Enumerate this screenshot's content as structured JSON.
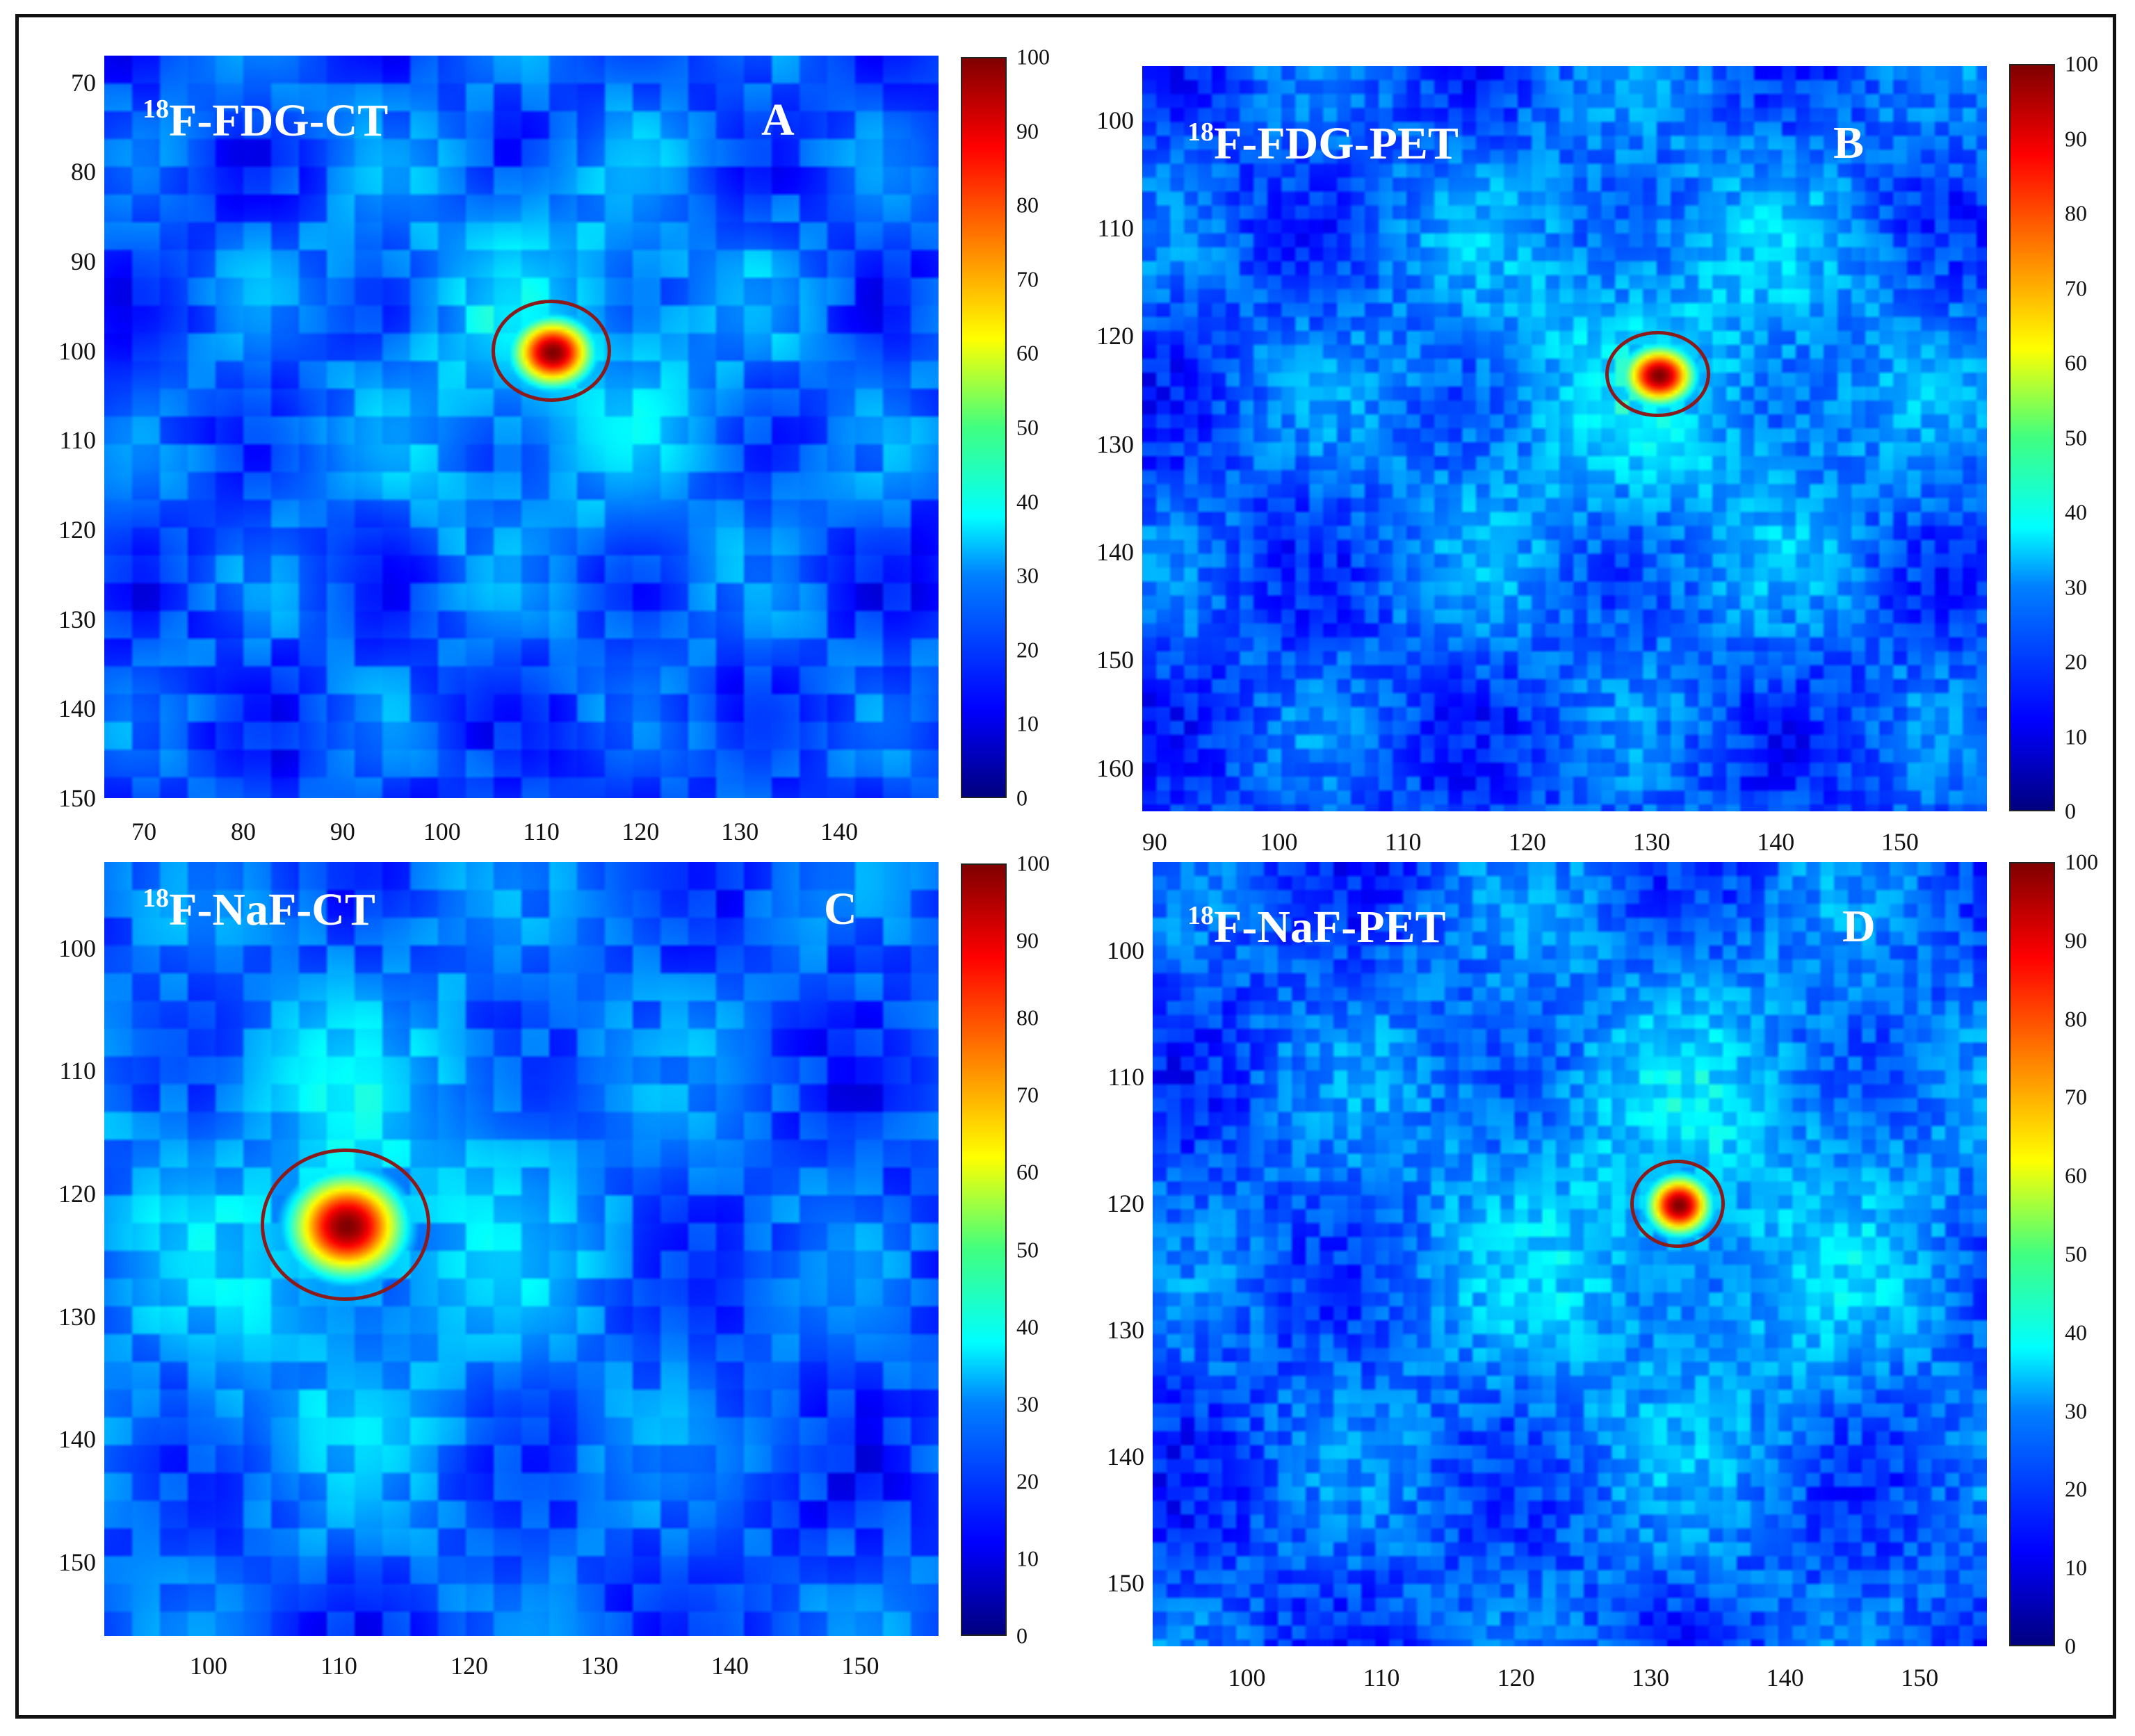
{
  "colors": {
    "roi_outline": "#8b1a1a",
    "label_text": "#ffffff",
    "colormap": "jet"
  },
  "chart_data": [
    {
      "type": "heatmap",
      "panel": "A",
      "title_sup": "18",
      "title_main": "F-FDG-CT",
      "letter": "A",
      "xlim": [
        66,
        150
      ],
      "ylim": [
        67,
        150
      ],
      "xticks": [
        70,
        80,
        90,
        100,
        110,
        120,
        130,
        140
      ],
      "yticks": [
        70,
        80,
        90,
        100,
        110,
        120,
        130,
        140,
        150
      ],
      "colorbar": {
        "min": 0,
        "max": 100,
        "ticks": [
          0,
          10,
          20,
          30,
          40,
          50,
          60,
          70,
          80,
          90,
          100
        ]
      },
      "hotspot": {
        "x": 111,
        "y": 100,
        "peak": 100
      },
      "roi": {
        "cx": 111,
        "cy": 100,
        "rx": 6,
        "ry": 5.7
      }
    },
    {
      "type": "heatmap",
      "panel": "B",
      "title_sup": "18",
      "title_main": "F-FDG-PET",
      "letter": "B",
      "xlim": [
        89,
        157
      ],
      "ylim": [
        95,
        164
      ],
      "xticks": [
        90,
        100,
        110,
        120,
        130,
        140,
        150
      ],
      "yticks": [
        100,
        110,
        120,
        130,
        140,
        150,
        160
      ],
      "colorbar": {
        "min": 0,
        "max": 100,
        "ticks": [
          0,
          10,
          20,
          30,
          40,
          50,
          60,
          70,
          80,
          90,
          100
        ]
      },
      "hotspot": {
        "x": 130.5,
        "y": 123.5,
        "peak": 100
      },
      "roi": {
        "cx": 130.5,
        "cy": 123.5,
        "rx": 4.2,
        "ry": 4
      }
    },
    {
      "type": "heatmap",
      "panel": "C",
      "title_sup": "18",
      "title_main": "F-NaF-CT",
      "letter": "C",
      "xlim": [
        92,
        156
      ],
      "ylim": [
        93,
        156
      ],
      "xticks": [
        100,
        110,
        120,
        130,
        140,
        150
      ],
      "yticks": [
        100,
        110,
        120,
        130,
        140,
        150
      ],
      "colorbar": {
        "min": 0,
        "max": 100,
        "ticks": [
          0,
          10,
          20,
          30,
          40,
          50,
          60,
          70,
          80,
          90,
          100
        ]
      },
      "hotspot": {
        "x": 110.5,
        "y": 122.5,
        "peak": 100
      },
      "roi": {
        "cx": 110.5,
        "cy": 122.5,
        "rx": 6.5,
        "ry": 6.2
      }
    },
    {
      "type": "heatmap",
      "panel": "D",
      "title_sup": "18",
      "title_main": "F-NaF-PET",
      "letter": "D",
      "xlim": [
        93,
        155
      ],
      "ylim": [
        93,
        155
      ],
      "xticks": [
        100,
        110,
        120,
        130,
        140,
        150
      ],
      "yticks": [
        100,
        110,
        120,
        130,
        140,
        150
      ],
      "colorbar": {
        "min": 0,
        "max": 100,
        "ticks": [
          0,
          10,
          20,
          30,
          40,
          50,
          60,
          70,
          80,
          90,
          100
        ]
      },
      "hotspot": {
        "x": 132,
        "y": 120,
        "peak": 100
      },
      "roi": {
        "cx": 132,
        "cy": 120,
        "rx": 3.5,
        "ry": 3.5
      }
    }
  ]
}
